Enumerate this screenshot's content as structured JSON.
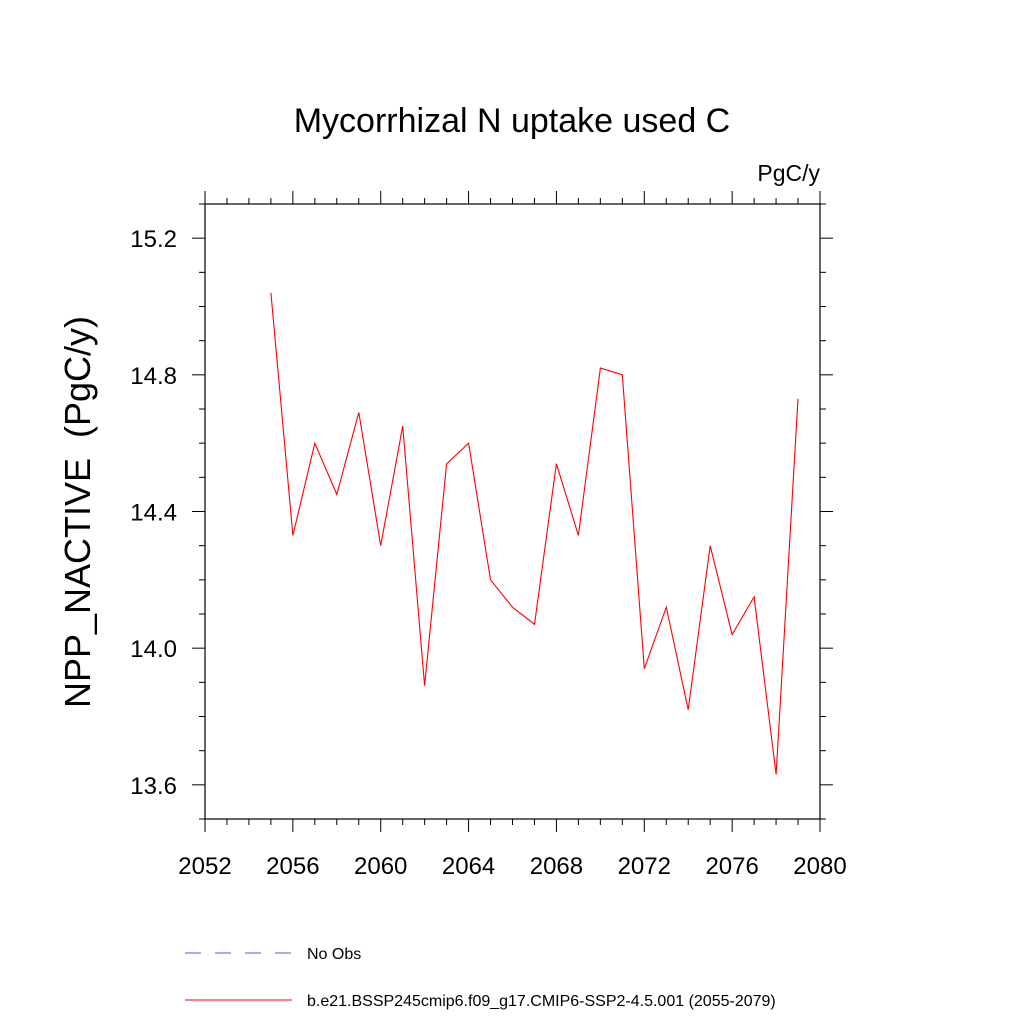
{
  "chart_data": {
    "type": "line",
    "title": "Mycorrhizal N uptake used C",
    "units_label": "PgC/y",
    "ylabel": "NPP_NACTIVE  (PgC/y)",
    "xlabel": "",
    "xlim": [
      2052,
      2080
    ],
    "ylim": [
      13.5,
      15.3
    ],
    "x_ticks": [
      2052,
      2056,
      2060,
      2064,
      2068,
      2072,
      2076,
      2080
    ],
    "x_tick_labels": [
      "2052",
      "2056",
      "2060",
      "2064",
      "2068",
      "2072",
      "2076",
      "2080"
    ],
    "y_ticks": [
      13.6,
      14.0,
      14.4,
      14.8,
      15.2
    ],
    "y_tick_labels": [
      "13.6",
      "14.0",
      "14.4",
      "14.8",
      "15.2"
    ],
    "grid": false,
    "legend_position": "bottom",
    "series": [
      {
        "name": "b.e21.BSSP245cmip6.f09_g17.CMIP6-SSP2-4.5.001 (2055-2079)",
        "color": "#ff0000",
        "dash": "solid",
        "x": [
          2055,
          2056,
          2057,
          2058,
          2059,
          2060,
          2061,
          2062,
          2063,
          2064,
          2065,
          2066,
          2067,
          2068,
          2069,
          2070,
          2071,
          2072,
          2073,
          2074,
          2075,
          2076,
          2077,
          2078,
          2079
        ],
        "values": [
          15.04,
          14.33,
          14.6,
          14.45,
          14.69,
          14.3,
          14.65,
          13.89,
          14.54,
          14.6,
          14.2,
          14.12,
          14.07,
          14.54,
          14.33,
          14.82,
          14.8,
          13.94,
          14.12,
          13.82,
          14.3,
          14.04,
          14.15,
          13.63,
          14.73
        ]
      }
    ],
    "legend": [
      {
        "label": "No Obs",
        "color": "#5a5ac8",
        "dash": "dashed"
      },
      {
        "label": "b.e21.BSSP245cmip6.f09_g17.CMIP6-SSP2-4.5.001 (2055-2079)",
        "color": "#ff0000",
        "dash": "solid"
      }
    ]
  }
}
